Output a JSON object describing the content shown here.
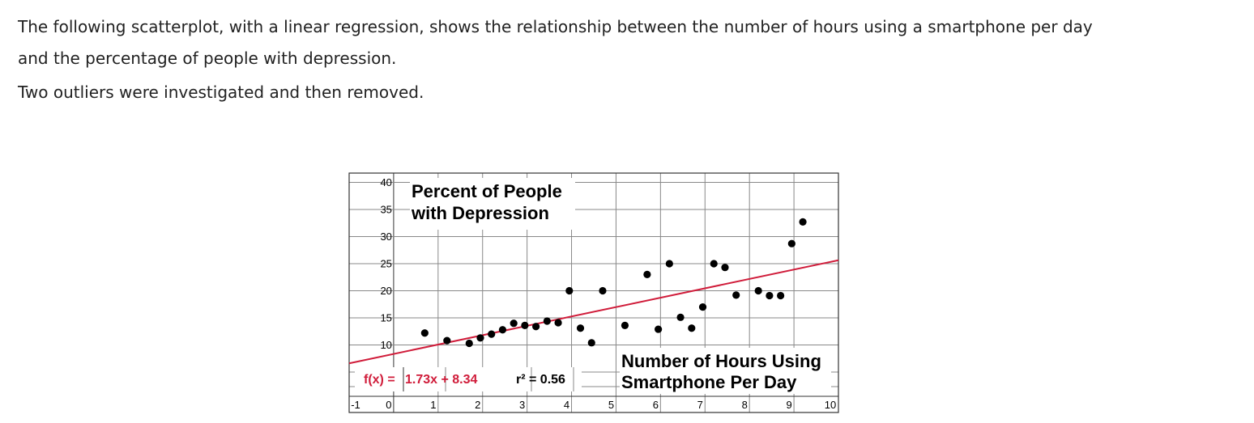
{
  "intro": {
    "paragraph1_line1": "The following scatterplot, with a linear regression, shows the relationship between the number of hours using a smartphone per day",
    "paragraph1_line2": "and the percentage of people with depression.",
    "paragraph2": "Two outliers were investigated and then removed."
  },
  "chart_data": {
    "type": "scatter",
    "title_lines": [
      "Percent of People",
      "with Depression"
    ],
    "xlabel_lines": [
      "Number of Hours Using",
      "Smartphone Per Day"
    ],
    "xlim": [
      -1,
      10
    ],
    "ylim": [
      0,
      40
    ],
    "x_ticks": [
      -1,
      0,
      1,
      2,
      3,
      4,
      5,
      6,
      7,
      8,
      9,
      10
    ],
    "y_ticks": [
      10,
      15,
      20,
      25,
      30,
      35,
      40
    ],
    "grid": true,
    "regression": {
      "slope": 1.73,
      "intercept": 8.34,
      "equation_prefix": "f(x) =",
      "equation_body": "1.73x + 8.34",
      "r_squared_label": "r² = 0.56",
      "color": "#d01c3a"
    },
    "points": [
      {
        "x": 0.7,
        "y": 12.2
      },
      {
        "x": 1.2,
        "y": 10.8
      },
      {
        "x": 1.7,
        "y": 10.3
      },
      {
        "x": 1.95,
        "y": 11.3
      },
      {
        "x": 2.2,
        "y": 12.0
      },
      {
        "x": 2.45,
        "y": 12.8
      },
      {
        "x": 2.7,
        "y": 14.0
      },
      {
        "x": 2.95,
        "y": 13.6
      },
      {
        "x": 3.2,
        "y": 13.4
      },
      {
        "x": 3.45,
        "y": 14.4
      },
      {
        "x": 3.7,
        "y": 14.1
      },
      {
        "x": 3.95,
        "y": 20.0
      },
      {
        "x": 4.2,
        "y": 13.1
      },
      {
        "x": 4.45,
        "y": 10.4
      },
      {
        "x": 4.7,
        "y": 20.0
      },
      {
        "x": 5.2,
        "y": 13.6
      },
      {
        "x": 5.7,
        "y": 23.0
      },
      {
        "x": 5.95,
        "y": 12.9
      },
      {
        "x": 6.2,
        "y": 25.0
      },
      {
        "x": 6.45,
        "y": 15.1
      },
      {
        "x": 6.7,
        "y": 13.1
      },
      {
        "x": 6.95,
        "y": 17.0
      },
      {
        "x": 7.2,
        "y": 25.0
      },
      {
        "x": 7.45,
        "y": 24.3
      },
      {
        "x": 7.7,
        "y": 19.2
      },
      {
        "x": 8.2,
        "y": 20.0
      },
      {
        "x": 8.45,
        "y": 19.1
      },
      {
        "x": 8.7,
        "y": 19.1
      },
      {
        "x": 8.95,
        "y": 28.7
      },
      {
        "x": 9.2,
        "y": 32.7
      }
    ]
  }
}
